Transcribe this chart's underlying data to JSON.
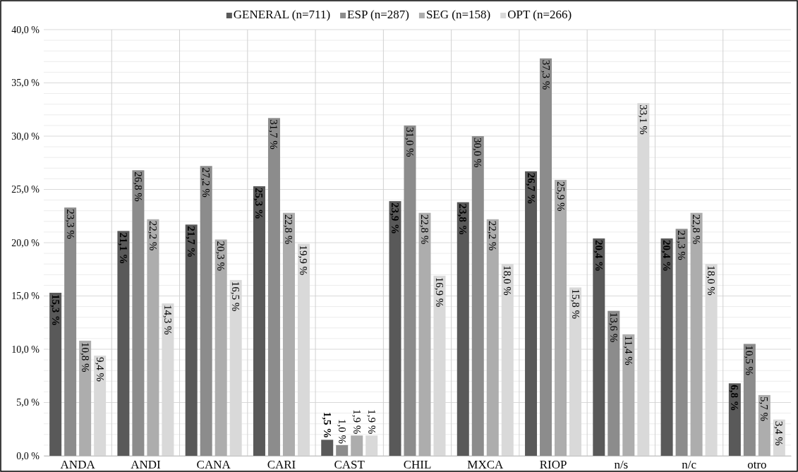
{
  "chart_data": {
    "type": "bar",
    "categories": [
      "ANDA",
      "ANDI",
      "CANA",
      "CARI",
      "CAST",
      "CHIL",
      "MXCA",
      "RIOP",
      "n/s",
      "n/c",
      "otro"
    ],
    "series": [
      {
        "name": "GENERAL (n=711)",
        "color": "#595959",
        "values": [
          15.3,
          21.1,
          21.7,
          25.3,
          1.5,
          23.9,
          23.8,
          26.7,
          20.4,
          20.4,
          6.8
        ],
        "value_labels": [
          "15,3 %",
          "21,1 %",
          "21,7 %",
          "25,3 %",
          "1,5 %",
          "23,9 %",
          "23,8 %",
          "26,7 %",
          "20,4 %",
          "20,4 %",
          "6,8 %"
        ]
      },
      {
        "name": "ESP (n=287)",
        "color": "#8c8c8c",
        "values": [
          23.3,
          26.8,
          27.2,
          31.7,
          1.0,
          31.0,
          30.0,
          37.3,
          13.6,
          21.3,
          10.5
        ],
        "value_labels": [
          "23,3 %",
          "26,8 %",
          "27,2 %",
          "31,7 %",
          "1,0 %",
          "31,0 %",
          "30,0 %",
          "37,3 %",
          "13,6 %",
          "21,3 %",
          "10,5 %"
        ]
      },
      {
        "name": "SEG (n=158)",
        "color": "#adadad",
        "values": [
          10.8,
          22.2,
          20.3,
          22.8,
          1.9,
          22.8,
          22.2,
          25.9,
          11.4,
          22.8,
          5.7
        ],
        "value_labels": [
          "10,8 %",
          "22,2 %",
          "20,3 %",
          "22,8 %",
          "1,9 %",
          "22,8 %",
          "22,2 %",
          "25,9 %",
          "11,4 %",
          "22,8 %",
          "5,7 %"
        ]
      },
      {
        "name": "OPT (n=266)",
        "color": "#d9d9d9",
        "values": [
          9.4,
          14.3,
          16.5,
          19.9,
          1.9,
          16.9,
          18.0,
          15.8,
          33.1,
          18.0,
          3.4
        ],
        "value_labels": [
          "9,4 %",
          "14,3 %",
          "16,5 %",
          "19,9 %",
          "1,9 %",
          "16,9 %",
          "18,0 %",
          "15,8 %",
          "33,1 %",
          "18,0 %",
          "3,4 %"
        ]
      }
    ],
    "ylim": [
      0,
      40
    ],
    "yticks": [
      {
        "value": 0,
        "label": "0,0 %"
      },
      {
        "value": 1,
        "label": null
      },
      {
        "value": 2,
        "label": null
      },
      {
        "value": 3,
        "label": null
      },
      {
        "value": 4,
        "label": null
      },
      {
        "value": 5,
        "label": "5,0 %"
      },
      {
        "value": 6,
        "label": null
      },
      {
        "value": 7,
        "label": null
      },
      {
        "value": 8,
        "label": null
      },
      {
        "value": 9,
        "label": null
      },
      {
        "value": 10,
        "label": "10,0 %"
      },
      {
        "value": 11,
        "label": null
      },
      {
        "value": 12,
        "label": null
      },
      {
        "value": 13,
        "label": null
      },
      {
        "value": 14,
        "label": null
      },
      {
        "value": 15,
        "label": "15,0 %"
      },
      {
        "value": 16,
        "label": null
      },
      {
        "value": 17,
        "label": null
      },
      {
        "value": 18,
        "label": null
      },
      {
        "value": 19,
        "label": null
      },
      {
        "value": 20,
        "label": "20,0 %"
      },
      {
        "value": 21,
        "label": null
      },
      {
        "value": 22,
        "label": null
      },
      {
        "value": 23,
        "label": null
      },
      {
        "value": 24,
        "label": null
      },
      {
        "value": 25,
        "label": "25,0 %"
      },
      {
        "value": 26,
        "label": null
      },
      {
        "value": 27,
        "label": null
      },
      {
        "value": 28,
        "label": null
      },
      {
        "value": 29,
        "label": null
      },
      {
        "value": 30,
        "label": "30,0 %"
      },
      {
        "value": 31,
        "label": null
      },
      {
        "value": 32,
        "label": null
      },
      {
        "value": 33,
        "label": null
      },
      {
        "value": 34,
        "label": null
      },
      {
        "value": 35,
        "label": "35,0 %"
      },
      {
        "value": 36,
        "label": null
      },
      {
        "value": 37,
        "label": null
      },
      {
        "value": 38,
        "label": null
      },
      {
        "value": 39,
        "label": null
      },
      {
        "value": 40,
        "label": "40,0 %"
      }
    ],
    "grid": true,
    "legend": "top"
  }
}
